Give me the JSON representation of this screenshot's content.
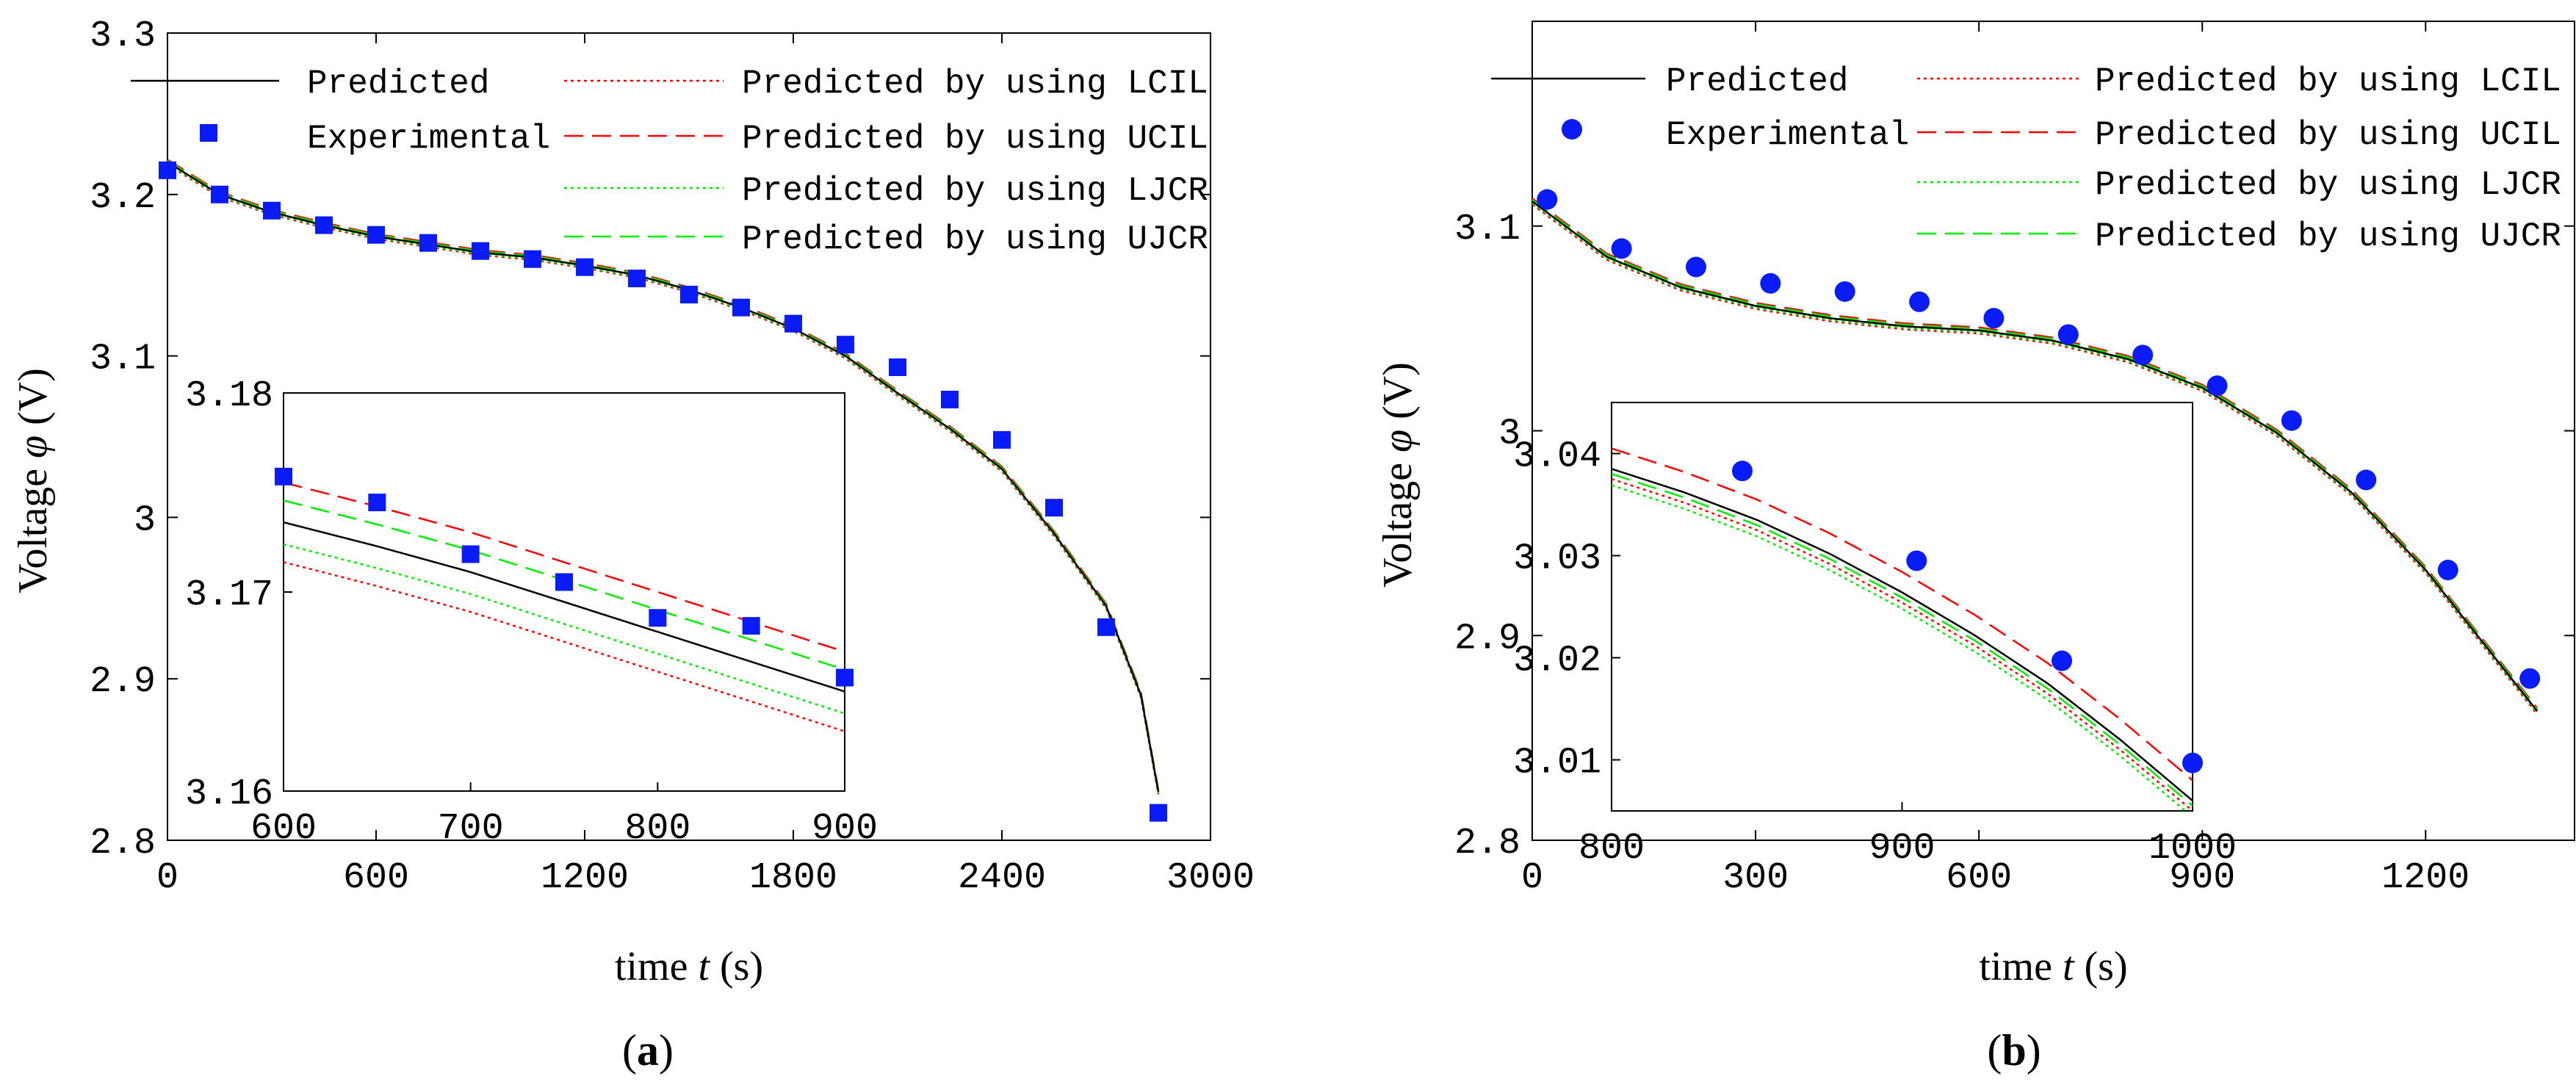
{
  "chart_data": [
    {
      "id": "a",
      "panel_label": "a",
      "type": "line",
      "xlabel_word": "time",
      "xlabel_var": "t",
      "xlabel_unit": "(s)",
      "ylabel_word": "Voltage",
      "ylabel_var": "φ",
      "ylabel_unit": "(V)",
      "xlim": [
        0,
        3000
      ],
      "ylim": [
        2.8,
        3.3
      ],
      "xticks": [
        0,
        600,
        1200,
        1800,
        2400,
        3000
      ],
      "yticks": [
        2.8,
        2.9,
        3,
        3.1,
        3.2,
        3.3
      ],
      "xtick_labels": [
        "0",
        "600",
        "1200",
        "1800",
        "2400",
        "3000"
      ],
      "ytick_labels": [
        "2.8",
        "2.9",
        "3",
        "3.1",
        "3.2",
        "3.3"
      ],
      "legend_labels": {
        "predicted": "Predicted",
        "experimental": "Experimental",
        "lcil": "Predicted by using LCIL",
        "ucil": "Predicted by using UCIL",
        "ljcr": "Predicted by using LJCR",
        "ujcr": "Predicted by using UJCR"
      },
      "marker": "square",
      "series": [
        {
          "name": "Predicted",
          "key": "predicted",
          "x": [
            0,
            150,
            300,
            450,
            600,
            750,
            900,
            1050,
            1200,
            1350,
            1500,
            1650,
            1800,
            1950,
            2100,
            2250,
            2400,
            2550,
            2700,
            2800,
            2850
          ],
          "y": [
            3.22,
            3.2,
            3.189,
            3.181,
            3.174,
            3.169,
            3.164,
            3.161,
            3.156,
            3.15,
            3.141,
            3.13,
            3.117,
            3.1,
            3.077,
            3.055,
            3.03,
            2.99,
            2.945,
            2.89,
            2.83
          ]
        },
        {
          "name": "Experimental",
          "key": "experimental",
          "x": [
            0,
            150,
            300,
            450,
            600,
            750,
            900,
            1050,
            1200,
            1350,
            1500,
            1650,
            1800,
            1950,
            2100,
            2250,
            2400,
            2550,
            2700,
            2850
          ],
          "y": [
            3.215,
            3.2,
            3.19,
            3.181,
            3.175,
            3.17,
            3.165,
            3.16,
            3.155,
            3.148,
            3.138,
            3.13,
            3.12,
            3.107,
            3.093,
            3.073,
            3.048,
            3.006,
            2.932,
            2.817
          ]
        }
      ],
      "inset": {
        "xlim": [
          600,
          900
        ],
        "ylim": [
          3.16,
          3.18
        ],
        "xticks": [
          600,
          700,
          800,
          900
        ],
        "yticks": [
          3.16,
          3.17,
          3.18
        ],
        "xtick_labels": [
          "600",
          "700",
          "800",
          "900"
        ],
        "ytick_labels": [
          "3.16",
          "3.17",
          "3.18"
        ],
        "predicted": {
          "x": [
            600,
            650,
            700,
            750,
            800,
            850,
            900
          ],
          "y": [
            3.1735,
            3.1723,
            3.171,
            3.1695,
            3.168,
            3.1665,
            3.165
          ]
        },
        "lcil_offset": -0.002,
        "ucil_offset": 0.002,
        "ljcr_offset": -0.0011,
        "ujcr_offset": 0.0011,
        "experimental": {
          "x": [
            600,
            650,
            700,
            750,
            800,
            850,
            900
          ],
          "y": [
            3.1758,
            3.1745,
            3.1719,
            3.1705,
            3.1687,
            3.1683,
            3.1657
          ]
        }
      }
    },
    {
      "id": "b",
      "panel_label": "b",
      "type": "line",
      "xlabel_word": "time",
      "xlabel_var": "t",
      "xlabel_unit": "(s)",
      "ylabel_word": "Voltage",
      "ylabel_var": "φ",
      "ylabel_unit": "(V)",
      "xlim": [
        0,
        1400
      ],
      "ylim": [
        2.8,
        3.2
      ],
      "xticks": [
        0,
        300,
        600,
        900,
        1200
      ],
      "yticks": [
        2.8,
        2.9,
        3,
        3.1
      ],
      "xtick_labels": [
        "0",
        "300",
        "600",
        "900",
        "1200"
      ],
      "ytick_labels": [
        "2.8",
        "2.9",
        "3",
        "3.1"
      ],
      "legend_labels": {
        "predicted": "Predicted",
        "experimental": "Experimental",
        "lcil": "Predicted by using LCIL",
        "ucil": "Predicted by using UCIL",
        "ljcr": "Predicted by using LJCR",
        "ujcr": "Predicted by using UJCR"
      },
      "marker": "circle",
      "series": [
        {
          "name": "Predicted",
          "key": "predicted",
          "x": [
            0,
            100,
            200,
            300,
            400,
            500,
            600,
            700,
            800,
            900,
            1000,
            1100,
            1200,
            1300,
            1350
          ],
          "y": [
            3.112,
            3.085,
            3.07,
            3.061,
            3.055,
            3.051,
            3.049,
            3.044,
            3.035,
            3.021,
            2.999,
            2.97,
            2.932,
            2.886,
            2.863
          ]
        },
        {
          "name": "Experimental",
          "key": "experimental",
          "x": [
            20,
            120,
            220,
            320,
            420,
            520,
            620,
            720,
            820,
            920,
            1020,
            1120,
            1230,
            1340
          ],
          "y": [
            3.113,
            3.089,
            3.08,
            3.072,
            3.068,
            3.063,
            3.055,
            3.047,
            3.037,
            3.022,
            3.005,
            2.976,
            2.932,
            2.879
          ]
        }
      ],
      "inset": {
        "xlim": [
          800,
          1000
        ],
        "ylim": [
          3.005,
          3.045
        ],
        "xticks": [
          800,
          900,
          1000
        ],
        "yticks": [
          3.01,
          3.02,
          3.03,
          3.04
        ],
        "xtick_labels": [
          "800",
          "900",
          "1000"
        ],
        "ytick_labels": [
          "3.01",
          "3.02",
          "3.03",
          "3.04"
        ],
        "predicted": {
          "x": [
            800,
            825,
            850,
            875,
            900,
            925,
            950,
            975,
            1000
          ],
          "y": [
            3.0385,
            3.0362,
            3.0335,
            3.0302,
            3.0264,
            3.0222,
            3.0175,
            3.012,
            3.006
          ]
        },
        "lcil_offset": -0.001,
        "ucil_offset": 0.002,
        "ljcr_offset": -0.0016,
        "ujcr_offset": -0.0005,
        "experimental": {
          "x": [
            845,
            905,
            955,
            1000
          ],
          "y": [
            3.0383,
            3.0295,
            3.0197,
            3.0097
          ]
        }
      }
    }
  ]
}
